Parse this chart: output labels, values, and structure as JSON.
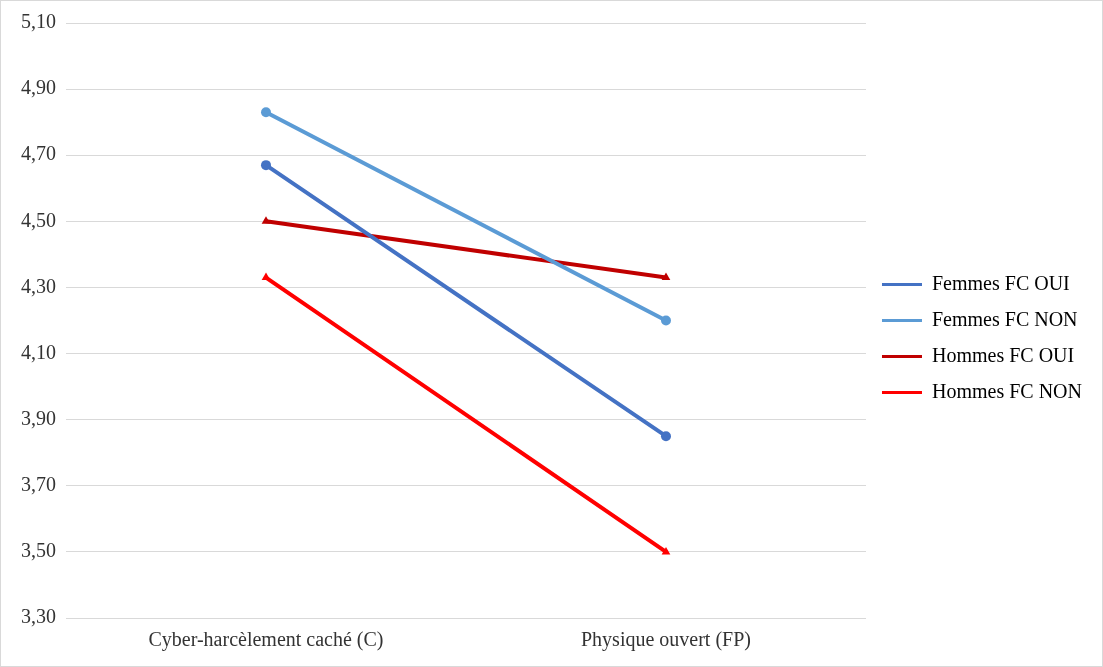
{
  "chart_data": {
    "type": "line",
    "categories": [
      "Cyber-harcèlement caché (C)",
      "Physique ouvert (FP)"
    ],
    "series": [
      {
        "name": "Femmes FC OUI",
        "color": "#4472c4",
        "marker": "circle",
        "values": [
          4.67,
          3.85
        ]
      },
      {
        "name": "Femmes FC NON",
        "color": "#5b9bd5",
        "marker": "circle",
        "values": [
          4.83,
          4.2
        ]
      },
      {
        "name": "Hommes FC OUI",
        "color": "#c00000",
        "marker": "triangle",
        "values": [
          4.5,
          4.33
        ]
      },
      {
        "name": "Hommes FC NON",
        "color": "#ff0000",
        "marker": "triangle",
        "values": [
          4.33,
          3.5
        ]
      }
    ],
    "ylim": [
      3.3,
      5.1
    ],
    "yticks": [
      {
        "value": 3.3,
        "label": "3,30"
      },
      {
        "value": 3.5,
        "label": "3,50"
      },
      {
        "value": 3.7,
        "label": "3,70"
      },
      {
        "value": 3.9,
        "label": "3,90"
      },
      {
        "value": 4.1,
        "label": "4,10"
      },
      {
        "value": 4.3,
        "label": "4,30"
      },
      {
        "value": 4.5,
        "label": "4,50"
      },
      {
        "value": 4.7,
        "label": "4,70"
      },
      {
        "value": 4.9,
        "label": "4,90"
      },
      {
        "value": 5.1,
        "label": "5,10"
      }
    ],
    "grid": "y",
    "legend": "right",
    "line_style": "solid"
  }
}
